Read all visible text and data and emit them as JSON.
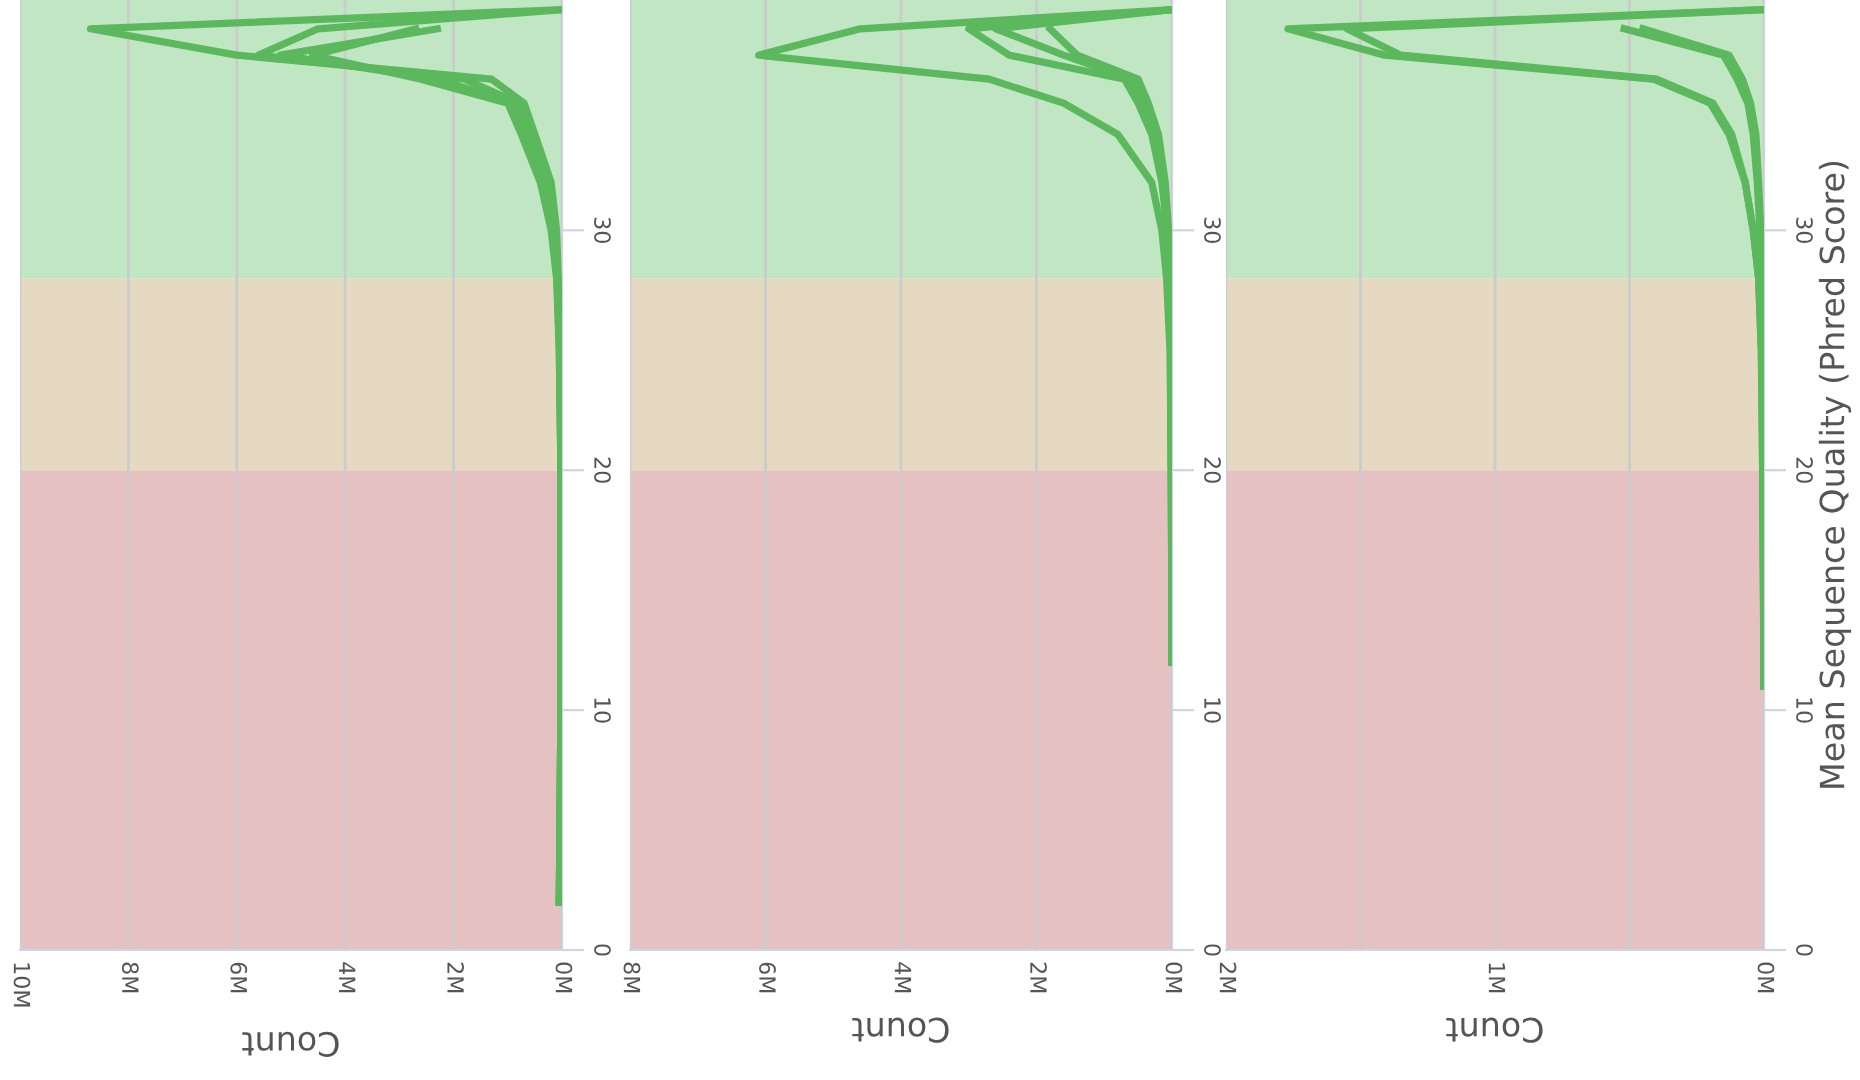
{
  "chart_data": [
    {
      "type": "line",
      "orientation": "horizontal",
      "xlabel": "Count",
      "grid": "x",
      "line_style": "solid",
      "marker": "none",
      "legend": false,
      "x": [
        2,
        10,
        20,
        25,
        28,
        30,
        32,
        34,
        35.3,
        36.3,
        37.3,
        38.4,
        39.2
      ],
      "series": [
        {
          "color": "#5cb85c",
          "values": [
            50000,
            20000,
            20000,
            40000,
            70000,
            100000,
            200000,
            500000,
            700000,
            1300000,
            6000000,
            8700000,
            0
          ]
        },
        {
          "color": "#5cb85c",
          "values": [
            50000,
            20000,
            20000,
            40000,
            80000,
            150000,
            250000,
            600000,
            800000,
            1800000,
            5600000,
            4500000,
            0
          ]
        },
        {
          "color": "#5cb85c",
          "values": [
            50000,
            20000,
            20000,
            50000,
            90000,
            180000,
            300000,
            650000,
            900000,
            2300000,
            5200000,
            2300000,
            null
          ]
        },
        {
          "color": "#5cb85c",
          "values": [
            50000,
            20000,
            20000,
            50000,
            100000,
            200000,
            400000,
            750000,
            1000000,
            2600000,
            4600000,
            2700000,
            null
          ]
        }
      ],
      "xlim": [
        10000000,
        0
      ],
      "xticks": [
        {
          "value": 10000000,
          "label": "10M"
        },
        {
          "value": 8000000,
          "label": "8M"
        },
        {
          "value": 6000000,
          "label": "6M"
        },
        {
          "value": 4000000,
          "label": "4M"
        },
        {
          "value": 2000000,
          "label": "2M"
        },
        {
          "value": 0,
          "label": "0M"
        }
      ],
      "ylim": [
        0,
        39.6
      ],
      "yticks": [
        0,
        10,
        20,
        30
      ],
      "bands": [
        {
          "axis": "y",
          "from": 0,
          "to": 20,
          "color": "#e6c1c1"
        },
        {
          "axis": "y",
          "from": 20,
          "to": 28,
          "color": "#e6d9c1"
        },
        {
          "axis": "y",
          "from": 28,
          "to": 39.6,
          "color": "#c1e6c4"
        }
      ]
    },
    {
      "type": "line",
      "orientation": "horizontal",
      "xlabel": "Count",
      "grid": "x",
      "line_style": "solid",
      "marker": "none",
      "legend": false,
      "x": [
        12,
        20,
        25,
        28,
        30,
        32,
        34,
        35.3,
        36.3,
        37.3,
        38.4,
        39.2
      ],
      "series": [
        {
          "color": "#5cb85c",
          "values": [
            0,
            10000,
            30000,
            80000,
            150000,
            300000,
            800000,
            1600000,
            2700000,
            6100000,
            4600000,
            0
          ]
        },
        {
          "color": "#5cb85c",
          "values": [
            0,
            10000,
            20000,
            40000,
            70000,
            150000,
            300000,
            500000,
            700000,
            2400000,
            3000000,
            0
          ]
        },
        {
          "color": "#5cb85c",
          "values": [
            0,
            10000,
            20000,
            40000,
            60000,
            120000,
            250000,
            400000,
            600000,
            1600000,
            2600000,
            0
          ]
        },
        {
          "color": "#5cb85c",
          "values": [
            0,
            10000,
            20000,
            30000,
            50000,
            100000,
            200000,
            350000,
            500000,
            1400000,
            1800000,
            null
          ]
        }
      ],
      "xlim": [
        8000000,
        0
      ],
      "xticks": [
        {
          "value": 8000000,
          "label": "8M"
        },
        {
          "value": 6000000,
          "label": "6M"
        },
        {
          "value": 4000000,
          "label": "4M"
        },
        {
          "value": 2000000,
          "label": "2M"
        },
        {
          "value": 0,
          "label": "0M"
        }
      ],
      "ylim": [
        0,
        39.6
      ],
      "yticks": [
        0,
        10,
        20,
        30
      ],
      "bands": [
        {
          "axis": "y",
          "from": 0,
          "to": 20,
          "color": "#e6c1c1"
        },
        {
          "axis": "y",
          "from": 20,
          "to": 28,
          "color": "#e6d9c1"
        },
        {
          "axis": "y",
          "from": 28,
          "to": 39.6,
          "color": "#c1e6c4"
        }
      ]
    },
    {
      "type": "line",
      "orientation": "horizontal",
      "xlabel": "Count",
      "ylabel": "Mean Sequence Quality (Phred Score)",
      "grid": "x",
      "line_style": "solid",
      "marker": "none",
      "legend": false,
      "x": [
        11,
        20,
        25,
        28,
        30,
        32,
        34,
        35.3,
        36.3,
        37.3,
        38.4,
        39.2
      ],
      "series": [
        {
          "color": "#5cb85c",
          "values": [
            0,
            5000,
            10000,
            20000,
            40000,
            70000,
            130000,
            200000,
            410000,
            1410000,
            1770000,
            0
          ]
        },
        {
          "color": "#5cb85c",
          "values": [
            0,
            5000,
            10000,
            20000,
            40000,
            70000,
            120000,
            190000,
            400000,
            1350000,
            1550000,
            0
          ]
        },
        {
          "color": "#5cb85c",
          "values": [
            0,
            3000,
            5000,
            8000,
            15000,
            25000,
            40000,
            60000,
            100000,
            150000,
            520000,
            null
          ]
        },
        {
          "color": "#5cb85c",
          "values": [
            0,
            3000,
            5000,
            8000,
            12000,
            20000,
            30000,
            50000,
            80000,
            130000,
            450000,
            null
          ]
        }
      ],
      "xlim": [
        2000000,
        0
      ],
      "xticks": [
        {
          "value": 2000000,
          "label": "2M"
        },
        {
          "value": 1500000,
          "label": null
        },
        {
          "value": 1000000,
          "label": "1M"
        },
        {
          "value": 500000,
          "label": null
        },
        {
          "value": 0,
          "label": "0M"
        }
      ],
      "ylim": [
        0,
        39.6
      ],
      "yticks": [
        0,
        10,
        20,
        30
      ],
      "bands": [
        {
          "axis": "y",
          "from": 0,
          "to": 20,
          "color": "#e6c1c1"
        },
        {
          "axis": "y",
          "from": 20,
          "to": 28,
          "color": "#e6d9c1"
        },
        {
          "axis": "y",
          "from": 28,
          "to": 39.6,
          "color": "#c1e6c4"
        }
      ]
    }
  ]
}
